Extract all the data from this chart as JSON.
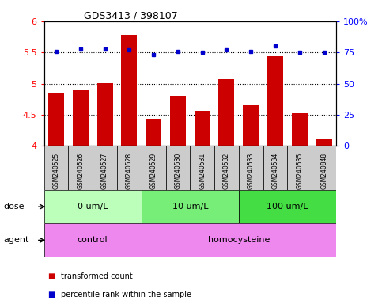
{
  "title": "GDS3413 / 398107",
  "samples": [
    "GSM240525",
    "GSM240526",
    "GSM240527",
    "GSM240528",
    "GSM240529",
    "GSM240530",
    "GSM240531",
    "GSM240532",
    "GSM240533",
    "GSM240534",
    "GSM240535",
    "GSM240848"
  ],
  "bar_values": [
    4.84,
    4.89,
    5.01,
    5.78,
    4.43,
    4.81,
    4.56,
    5.07,
    4.67,
    5.44,
    4.52,
    4.11
  ],
  "dot_values": [
    76,
    78,
    78,
    77,
    73,
    76,
    75,
    77,
    76,
    80,
    75,
    75
  ],
  "bar_color": "#cc0000",
  "dot_color": "#0000cc",
  "ylim_left": [
    4.0,
    6.0
  ],
  "ylim_right": [
    0,
    100
  ],
  "yticks_left": [
    4.0,
    4.5,
    5.0,
    5.5,
    6.0
  ],
  "yticks_right": [
    0,
    25,
    50,
    75,
    100
  ],
  "grid_lines": [
    4.5,
    5.0,
    5.5
  ],
  "dose_groups": [
    {
      "label": "0 um/L",
      "start": 0,
      "end": 4,
      "color": "#bbffbb"
    },
    {
      "label": "10 um/L",
      "start": 4,
      "end": 8,
      "color": "#77ee77"
    },
    {
      "label": "100 um/L",
      "start": 8,
      "end": 12,
      "color": "#44dd44"
    }
  ],
  "agent_groups": [
    {
      "label": "control",
      "start": 0,
      "end": 4,
      "color": "#ee88ee"
    },
    {
      "label": "homocysteine",
      "start": 4,
      "end": 12,
      "color": "#ee88ee"
    }
  ],
  "legend_items": [
    {
      "label": "transformed count",
      "color": "#cc0000"
    },
    {
      "label": "percentile rank within the sample",
      "color": "#0000cc"
    }
  ],
  "dose_label": "dose",
  "agent_label": "agent",
  "sample_box_color": "#cccccc"
}
